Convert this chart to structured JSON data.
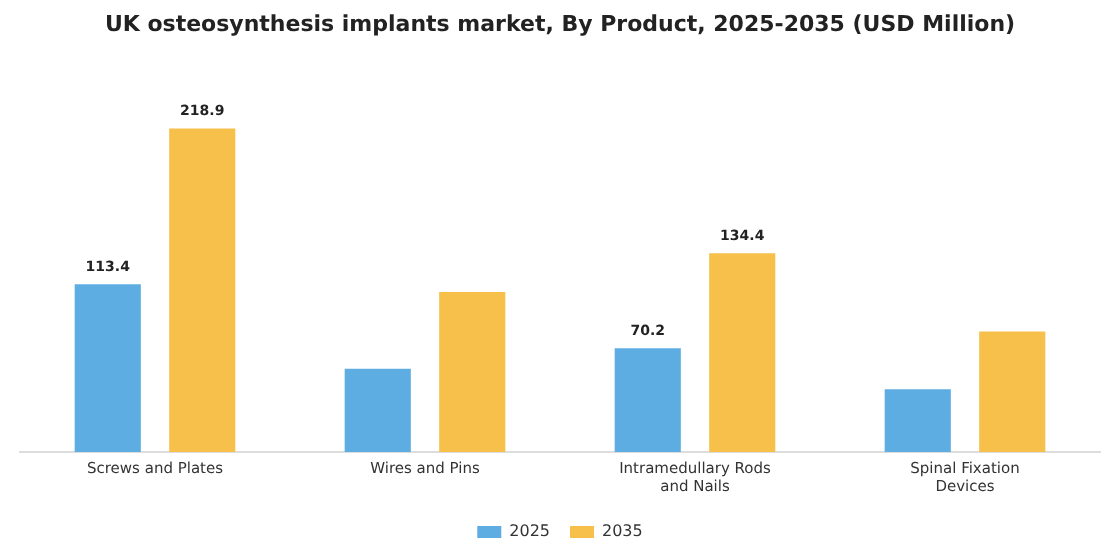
{
  "chart_data": {
    "type": "bar",
    "title": "UK osteosynthesis implants market, By Product, 2025-2035 (USD Million)",
    "categories": [
      "Screws and Plates",
      "Wires and Pins",
      "Intramedullary Rods and Nails",
      "Spinal Fixation Devices"
    ],
    "series": [
      {
        "name": "2025",
        "color": "#5dade2",
        "values": [
          113.4,
          56.3,
          70.2,
          42.5
        ],
        "value_labels": [
          "113.4",
          null,
          "70.2",
          null
        ]
      },
      {
        "name": "2035",
        "color": "#f7c04a",
        "values": [
          218.9,
          108.3,
          134.4,
          81.5
        ],
        "value_labels": [
          "218.9",
          null,
          "134.4",
          null
        ]
      }
    ],
    "grid": false,
    "legend": "bottom"
  }
}
